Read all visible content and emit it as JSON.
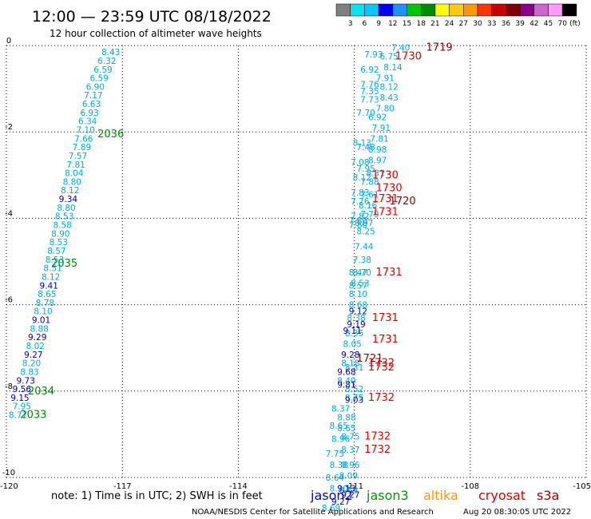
{
  "title": "12:00 — 23:59 UTC 08/18/2022",
  "subtitle": "12 hour collection of altimeter wave heights",
  "note": "note:  1) Time is in UTC;  2) SWH is in feet",
  "footer_left": "NOAA/NESDIS Center for Satellite Applications and Research",
  "footer_right": "Aug 20 08:30:05 UTC 2022",
  "colorbar": {
    "unit": "(ft)",
    "labels": [
      "3",
      "6",
      "9",
      "12",
      "15",
      "18",
      "21",
      "24",
      "27",
      "30",
      "33",
      "36",
      "39",
      "42",
      "45",
      "70"
    ],
    "colors": [
      "#808080",
      "#00e5ee",
      "#00c8ff",
      "#0000ff",
      "#1e90ff",
      "#00c800",
      "#008c00",
      "#ffff00",
      "#ffcc00",
      "#ff9900",
      "#ff3300",
      "#cc0000",
      "#800000",
      "#8b008b",
      "#cc66cc",
      "#ff99ff",
      "#000000"
    ]
  },
  "satellites": [
    {
      "name": "jason2",
      "color": "#0000dd"
    },
    {
      "name": "jason3",
      "color": "#009900"
    },
    {
      "name": "altika",
      "color": "#ff9900"
    },
    {
      "name": "cryosat",
      "color": "#dd0000"
    },
    {
      "name": "s3a",
      "color": "#990000"
    }
  ],
  "chart_data": {
    "type": "scatter",
    "x_ticks": [
      "-120",
      "-117",
      "-114",
      "-111",
      "-108",
      "-105"
    ],
    "y_ticks": [
      "0",
      "-2",
      "-4",
      "-6",
      "-8",
      "-10"
    ],
    "xlim": [
      -120,
      -105
    ],
    "ylim": [
      -10,
      0
    ],
    "grid": true,
    "series": [
      {
        "color": "#00aadd",
        "points": [
          {
            "x": -117.3,
            "y": -0.15,
            "label": "8.43"
          },
          {
            "x": -117.4,
            "y": -0.35,
            "label": "6.32"
          },
          {
            "x": -117.5,
            "y": -0.55,
            "label": "6.59"
          },
          {
            "x": -117.6,
            "y": -0.75,
            "label": "6.59"
          },
          {
            "x": -117.7,
            "y": -0.95,
            "label": "6.90"
          },
          {
            "x": -117.75,
            "y": -1.15,
            "label": "7.17"
          },
          {
            "x": -117.8,
            "y": -1.35,
            "label": "6.63"
          },
          {
            "x": -117.85,
            "y": -1.55,
            "label": "6.93"
          },
          {
            "x": -117.9,
            "y": -1.75,
            "label": "6.34"
          },
          {
            "x": -117.95,
            "y": -1.95,
            "label": "7.10"
          },
          {
            "x": -118.0,
            "y": -2.15,
            "label": "7.66"
          },
          {
            "x": -118.05,
            "y": -2.35,
            "label": "7.89"
          },
          {
            "x": -118.15,
            "y": -2.55,
            "label": "7.57"
          },
          {
            "x": -118.2,
            "y": -2.75,
            "label": "7.81"
          },
          {
            "x": -118.25,
            "y": -2.95,
            "label": "8.04"
          },
          {
            "x": -118.3,
            "y": -3.15,
            "label": "8.80"
          },
          {
            "x": -118.35,
            "y": -3.35,
            "label": "8.12"
          },
          {
            "x": -118.45,
            "y": -3.75,
            "label": "8.80"
          },
          {
            "x": -118.5,
            "y": -3.95,
            "label": "8.53"
          },
          {
            "x": -118.55,
            "y": -4.15,
            "label": "8.58"
          },
          {
            "x": -118.6,
            "y": -4.35,
            "label": "8.90"
          },
          {
            "x": -118.65,
            "y": -4.55,
            "label": "8.53"
          },
          {
            "x": -118.7,
            "y": -4.75,
            "label": "8.57"
          },
          {
            "x": -118.75,
            "y": -4.95,
            "label": "8.53"
          },
          {
            "x": -118.8,
            "y": -5.15,
            "label": "8.51"
          },
          {
            "x": -118.85,
            "y": -5.35,
            "label": "8.12"
          },
          {
            "x": -118.95,
            "y": -5.75,
            "label": "8.65"
          },
          {
            "x": -119.0,
            "y": -5.95,
            "label": "8.78"
          },
          {
            "x": -119.05,
            "y": -6.15,
            "label": "8.10"
          },
          {
            "x": -119.15,
            "y": -6.55,
            "label": "8.88"
          },
          {
            "x": -119.25,
            "y": -6.95,
            "label": "8.02"
          },
          {
            "x": -119.35,
            "y": -7.35,
            "label": "8.20"
          },
          {
            "x": -119.4,
            "y": -7.55,
            "label": "8.83"
          },
          {
            "x": -119.6,
            "y": -8.35,
            "label": "7.95"
          },
          {
            "x": -119.7,
            "y": -8.55,
            "label": "8.77"
          },
          {
            "x": -109.8,
            "y": -0.05,
            "label": "7.40"
          },
          {
            "x": -110.5,
            "y": -0.2,
            "label": "7.93"
          },
          {
            "x": -110.1,
            "y": -0.25,
            "label": "6.75"
          },
          {
            "x": -110.0,
            "y": -0.5,
            "label": "8.14"
          },
          {
            "x": -110.6,
            "y": -0.55,
            "label": "6.92"
          },
          {
            "x": -110.2,
            "y": -0.75,
            "label": "7.91"
          },
          {
            "x": -110.6,
            "y": -0.9,
            "label": "7.76"
          },
          {
            "x": -110.1,
            "y": -0.95,
            "label": "8.12"
          },
          {
            "x": -110.6,
            "y": -1.05,
            "label": "7.35"
          },
          {
            "x": -110.1,
            "y": -1.2,
            "label": "8.43"
          },
          {
            "x": -110.6,
            "y": -1.25,
            "label": "7.73"
          },
          {
            "x": -110.2,
            "y": -1.45,
            "label": "7.80"
          },
          {
            "x": -110.7,
            "y": -1.55,
            "label": "7.70"
          },
          {
            "x": -110.4,
            "y": -1.65,
            "label": "6.92"
          },
          {
            "x": -110.3,
            "y": -1.9,
            "label": "7.91"
          },
          {
            "x": -110.35,
            "y": -2.15,
            "label": "7.81"
          },
          {
            "x": -110.8,
            "y": -2.25,
            "label": "8.13"
          },
          {
            "x": -110.7,
            "y": -2.35,
            "label": "7.48"
          },
          {
            "x": -110.4,
            "y": -2.4,
            "label": "8.98"
          },
          {
            "x": -110.4,
            "y": -2.65,
            "label": "8.97"
          },
          {
            "x": -110.85,
            "y": -2.7,
            "label": "7.08"
          },
          {
            "x": -110.7,
            "y": -2.85,
            "label": "7.95"
          },
          {
            "x": -110.45,
            "y": -2.95,
            "label": "8.31"
          },
          {
            "x": -110.8,
            "y": -3.05,
            "label": "8.12"
          },
          {
            "x": -110.6,
            "y": -3.15,
            "label": "7.88"
          },
          {
            "x": -110.85,
            "y": -3.4,
            "label": "7.83"
          },
          {
            "x": -110.6,
            "y": -3.45,
            "label": "7.61"
          },
          {
            "x": -110.85,
            "y": -3.6,
            "label": "7.76"
          },
          {
            "x": -110.65,
            "y": -3.7,
            "label": "8.16"
          },
          {
            "x": -110.85,
            "y": -3.95,
            "label": "7.82"
          },
          {
            "x": -110.6,
            "y": -3.9,
            "label": "7.79"
          },
          {
            "x": -110.9,
            "y": -4.05,
            "label": "7.80"
          },
          {
            "x": -110.9,
            "y": -4.15,
            "label": "7.80"
          },
          {
            "x": -110.75,
            "y": -4.1,
            "label": "8.07"
          },
          {
            "x": -110.7,
            "y": -4.3,
            "label": "8.25"
          },
          {
            "x": -110.75,
            "y": -4.65,
            "label": "7.44"
          },
          {
            "x": -110.8,
            "y": -4.95,
            "label": "7.38"
          },
          {
            "x": -110.9,
            "y": -5.25,
            "label": "8.47"
          },
          {
            "x": -110.8,
            "y": -5.25,
            "label": "8.70"
          },
          {
            "x": -110.9,
            "y": -5.55,
            "label": "8.57"
          },
          {
            "x": -110.85,
            "y": -5.5,
            "label": "8.53"
          },
          {
            "x": -110.9,
            "y": -5.75,
            "label": "8.10"
          },
          {
            "x": -110.9,
            "y": -6.0,
            "label": "8.68"
          },
          {
            "x": -110.95,
            "y": -6.3,
            "label": "8.38"
          },
          {
            "x": -111.0,
            "y": -6.65,
            "label": "8.35"
          },
          {
            "x": -111.05,
            "y": -6.9,
            "label": "8.05"
          },
          {
            "x": -111.1,
            "y": -7.35,
            "label": "8.18"
          },
          {
            "x": -111.0,
            "y": -7.45,
            "label": "8.31"
          },
          {
            "x": -111.2,
            "y": -7.75,
            "label": "8.40"
          },
          {
            "x": -111.0,
            "y": -7.95,
            "label": "8.52"
          },
          {
            "x": -111.0,
            "y": -8.15,
            "label": "8.75"
          },
          {
            "x": -111.35,
            "y": -8.4,
            "label": "8.37"
          },
          {
            "x": -111.2,
            "y": -8.6,
            "label": "8.88"
          },
          {
            "x": -111.4,
            "y": -8.8,
            "label": "8.65"
          },
          {
            "x": -111.2,
            "y": -8.85,
            "label": "8.65"
          },
          {
            "x": -111.1,
            "y": -9.05,
            "label": "8.75"
          },
          {
            "x": -111.35,
            "y": -9.1,
            "label": "8.96"
          },
          {
            "x": -111.1,
            "y": -9.35,
            "label": "8.37"
          },
          {
            "x": -111.5,
            "y": -9.45,
            "label": "7.75"
          },
          {
            "x": -111.4,
            "y": -9.7,
            "label": "8.38"
          },
          {
            "x": -111.1,
            "y": -9.7,
            "label": "8.96"
          },
          {
            "x": -111.15,
            "y": -9.95,
            "label": "8.09"
          },
          {
            "x": -111.5,
            "y": -10.0,
            "label": "8.64"
          },
          {
            "x": -111.4,
            "y": -10.25,
            "label": "8.10"
          },
          {
            "x": -111.15,
            "y": -10.3,
            "label": "8.59"
          },
          {
            "x": -111.6,
            "y": -10.7,
            "label": "8.69"
          }
        ]
      },
      {
        "color": "#0000aa",
        "points": [
          {
            "x": -118.4,
            "y": -3.55,
            "label": "9.34"
          },
          {
            "x": -118.9,
            "y": -5.55,
            "label": "9.41"
          },
          {
            "x": -119.1,
            "y": -6.35,
            "label": "9.01"
          },
          {
            "x": -119.2,
            "y": -6.75,
            "label": "9.29"
          },
          {
            "x": -119.3,
            "y": -7.15,
            "label": "9.27"
          },
          {
            "x": -119.5,
            "y": -7.75,
            "label": "9.73"
          },
          {
            "x": -119.6,
            "y": -7.95,
            "label": "9.56"
          },
          {
            "x": -119.65,
            "y": -8.15,
            "label": "9.15"
          },
          {
            "x": -110.9,
            "y": -6.15,
            "label": "9.12"
          },
          {
            "x": -110.95,
            "y": -6.45,
            "label": "9.19"
          },
          {
            "x": -111.05,
            "y": -6.6,
            "label": "9.11"
          },
          {
            "x": -111.1,
            "y": -7.15,
            "label": "9.28"
          },
          {
            "x": -111.2,
            "y": -7.55,
            "label": "9.68"
          },
          {
            "x": -111.2,
            "y": -7.85,
            "label": "9.81"
          },
          {
            "x": -111.0,
            "y": -8.2,
            "label": "9.03"
          },
          {
            "x": -111.2,
            "y": -10.25,
            "label": "9.13"
          },
          {
            "x": -111.1,
            "y": -10.4,
            "label": "9.27"
          },
          {
            "x": -111.35,
            "y": -10.55,
            "label": "9.27"
          }
        ]
      },
      {
        "color": "#008800",
        "points": [
          {
            "x": -117.3,
            "y": -2.05,
            "label": "2036"
          },
          {
            "x": -118.5,
            "y": -5.05,
            "label": "2035"
          },
          {
            "x": -119.1,
            "y": -8.0,
            "label": "2034"
          },
          {
            "x": -119.3,
            "y": -8.55,
            "label": "2033"
          }
        ]
      },
      {
        "color": "#dd0000",
        "points": [
          {
            "x": -109.6,
            "y": -0.25,
            "label": "1730"
          },
          {
            "x": -110.2,
            "y": -3.0,
            "label": "1730"
          },
          {
            "x": -110.1,
            "y": -3.3,
            "label": "1730"
          },
          {
            "x": -110.2,
            "y": -3.55,
            "label": "1731"
          },
          {
            "x": -110.2,
            "y": -3.85,
            "label": "1731"
          },
          {
            "x": -110.1,
            "y": -5.25,
            "label": "1731"
          },
          {
            "x": -110.2,
            "y": -6.3,
            "label": "1731"
          },
          {
            "x": -110.2,
            "y": -6.8,
            "label": "1731"
          },
          {
            "x": -110.3,
            "y": -7.35,
            "label": "1732"
          },
          {
            "x": -110.3,
            "y": -7.45,
            "label": "1732"
          },
          {
            "x": -110.3,
            "y": -8.15,
            "label": "1732"
          },
          {
            "x": -110.4,
            "y": -9.05,
            "label": "1732"
          },
          {
            "x": -110.4,
            "y": -9.35,
            "label": "1732"
          }
        ]
      },
      {
        "color": "#880000",
        "points": [
          {
            "x": -108.8,
            "y": -0.05,
            "label": "1719"
          },
          {
            "x": -109.75,
            "y": -3.6,
            "label": "1720"
          },
          {
            "x": -110.6,
            "y": -7.25,
            "label": "1721"
          }
        ]
      }
    ]
  }
}
